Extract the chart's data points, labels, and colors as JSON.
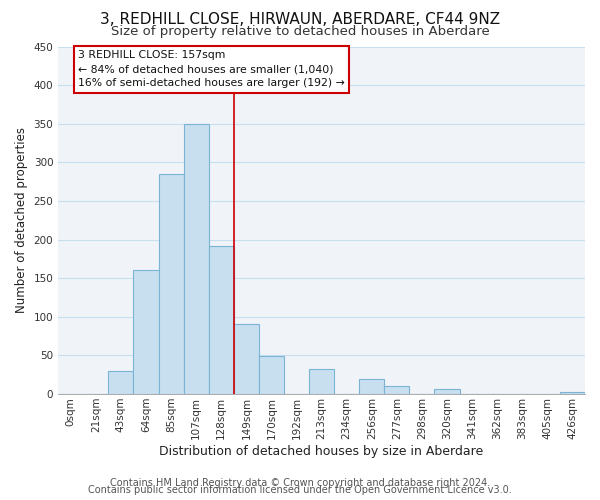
{
  "title": "3, REDHILL CLOSE, HIRWAUN, ABERDARE, CF44 9NZ",
  "subtitle": "Size of property relative to detached houses in Aberdare",
  "xlabel": "Distribution of detached houses by size in Aberdare",
  "ylabel": "Number of detached properties",
  "bar_labels": [
    "0sqm",
    "21sqm",
    "43sqm",
    "64sqm",
    "85sqm",
    "107sqm",
    "128sqm",
    "149sqm",
    "170sqm",
    "192sqm",
    "213sqm",
    "234sqm",
    "256sqm",
    "277sqm",
    "298sqm",
    "320sqm",
    "341sqm",
    "362sqm",
    "383sqm",
    "405sqm",
    "426sqm"
  ],
  "bar_values": [
    0,
    0,
    30,
    160,
    285,
    350,
    192,
    91,
    49,
    0,
    32,
    0,
    20,
    11,
    0,
    6,
    0,
    0,
    0,
    0,
    3
  ],
  "bar_color": "#c8dff0",
  "bar_edge_color": "#7ab3d3",
  "vline_color": "#cc0000",
  "annotation_title": "3 REDHILL CLOSE: 157sqm",
  "annotation_line1": "← 84% of detached houses are smaller (1,040)",
  "annotation_line2": "16% of semi-detached houses are larger (192) →",
  "annotation_box_color": "#ffffff",
  "annotation_box_edge": "#cc0000",
  "grid_color": "#c8dff0",
  "bg_color": "#f0f4f8",
  "footer1": "Contains HM Land Registry data © Crown copyright and database right 2024.",
  "footer2": "Contains public sector information licensed under the Open Government Licence v3.0.",
  "ylim": [
    0,
    450
  ],
  "title_fontsize": 11,
  "subtitle_fontsize": 9.5,
  "xlabel_fontsize": 9,
  "ylabel_fontsize": 8.5,
  "tick_fontsize": 7.5,
  "footer_fontsize": 7
}
